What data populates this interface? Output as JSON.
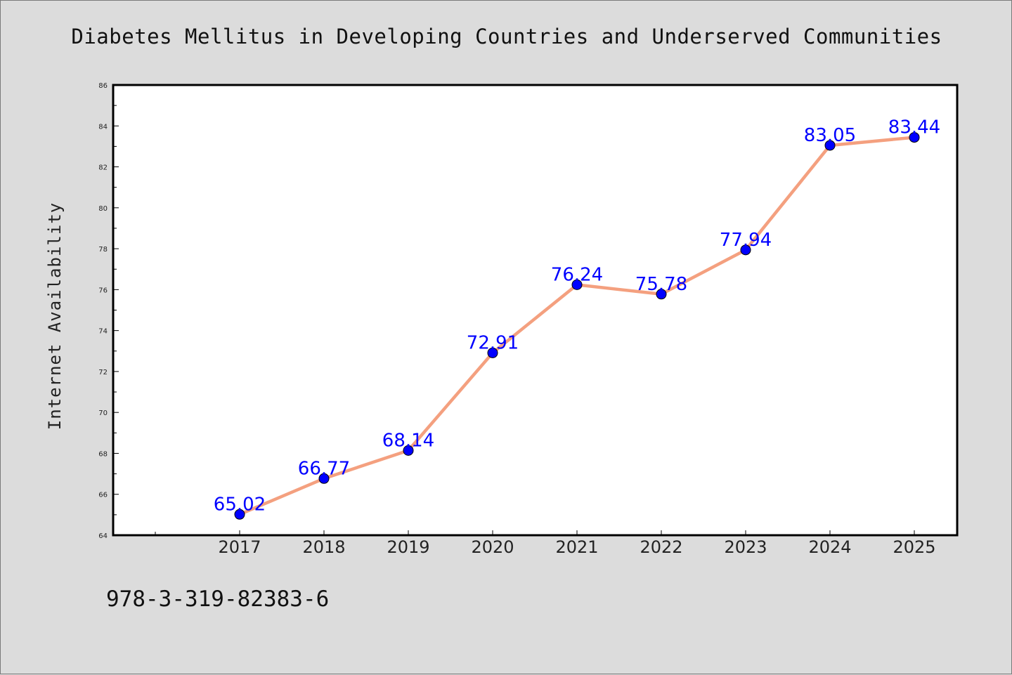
{
  "page": {
    "title": "Diabetes Mellitus in Developing Countries and Underserved Communities",
    "isbn": "978-3-319-82383-6"
  },
  "chart_data": {
    "type": "line",
    "title": "Diabetes Mellitus in Developing Countries and Underserved Communities",
    "xlabel": "",
    "ylabel": "Internet Availability",
    "categories": [
      "2017",
      "2018",
      "2019",
      "2020",
      "2021",
      "2022",
      "2023",
      "2024",
      "2025"
    ],
    "series": [
      {
        "values": [
          65.02,
          66.77,
          68.14,
          72.91,
          76.24,
          75.78,
          77.94,
          83.05,
          83.44
        ]
      }
    ],
    "data_labels": [
      "65.02",
      "66.77",
      "68.14",
      "72.91",
      "76.24",
      "75.78",
      "77.94",
      "83.05",
      "83.44"
    ],
    "ylim": [
      64,
      86
    ],
    "yticks": [
      64,
      66,
      68,
      70,
      72,
      74,
      76,
      78,
      80,
      82,
      84,
      86
    ],
    "grid": false,
    "legend": "none",
    "colors": {
      "line": "#f4a07f",
      "marker": "#0000ff",
      "data_label": "#0000ff",
      "plot_background": "#ffffff",
      "page_background": "#dcdcdc"
    }
  }
}
